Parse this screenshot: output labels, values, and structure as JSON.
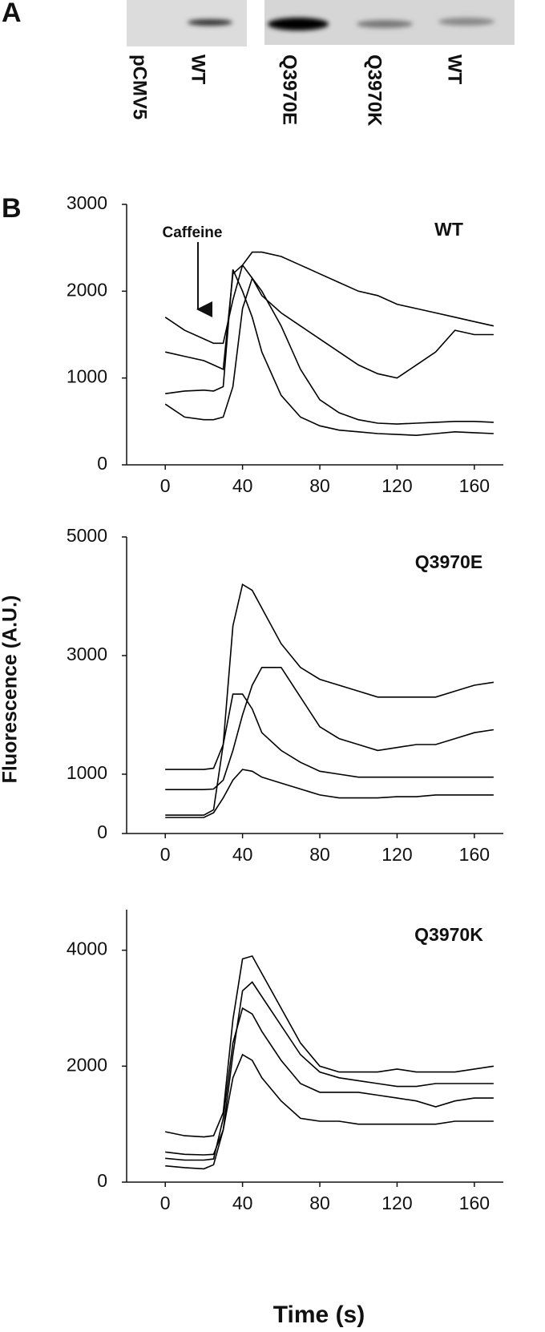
{
  "panel_labels": [
    "A",
    "B"
  ],
  "blot": {
    "lanes": [
      "pCMV5",
      "WT",
      "Q3970E",
      "Q3970K",
      "WT"
    ]
  },
  "chart_data": [
    {
      "type": "line",
      "label": "WT",
      "annotation": "Caffeine",
      "x": [
        0,
        10,
        20,
        25,
        30,
        35,
        40,
        45,
        50,
        60,
        70,
        80,
        90,
        100,
        110,
        120,
        130,
        140,
        150,
        160,
        170
      ],
      "xlim": [
        -20,
        175
      ],
      "xticks": [
        0,
        40,
        80,
        120,
        160
      ],
      "ylim": [
        0,
        3000
      ],
      "yticks": [
        0,
        1000,
        2000,
        3000
      ],
      "series": [
        {
          "color": "#000000",
          "values": [
            1700,
            1550,
            1450,
            1400,
            1400,
            1900,
            2300,
            2450,
            2450,
            2400,
            2300,
            2200,
            2100,
            2000,
            1950,
            1850,
            1800,
            1750,
            1700,
            1650,
            1600
          ]
        },
        {
          "color": "#000000",
          "values": [
            1300,
            1250,
            1200,
            1150,
            1100,
            2200,
            2300,
            2150,
            1950,
            1750,
            1600,
            1450,
            1300,
            1150,
            1050,
            1000,
            1150,
            1300,
            1550,
            1500,
            1500
          ]
        },
        {
          "color": "#000000",
          "values": [
            820,
            850,
            860,
            850,
            900,
            2250,
            2000,
            1700,
            1300,
            800,
            550,
            450,
            400,
            380,
            360,
            350,
            340,
            360,
            380,
            370,
            360
          ]
        },
        {
          "color": "#000000",
          "values": [
            700,
            550,
            520,
            520,
            550,
            900,
            1800,
            2150,
            2000,
            1600,
            1100,
            750,
            600,
            520,
            480,
            470,
            480,
            490,
            500,
            500,
            490
          ]
        }
      ]
    },
    {
      "type": "line",
      "label": "Q3970E",
      "y_label": "Fluorescence (A.U.)",
      "x": [
        0,
        10,
        20,
        25,
        30,
        35,
        40,
        45,
        50,
        60,
        70,
        80,
        90,
        100,
        110,
        120,
        130,
        140,
        150,
        160,
        170
      ],
      "xlim": [
        -20,
        175
      ],
      "xticks": [
        0,
        40,
        80,
        120,
        160
      ],
      "ylim": [
        0,
        5000
      ],
      "yticks": [
        0,
        1000,
        3000,
        5000
      ],
      "series": [
        {
          "color": "#000000",
          "values": [
            1080,
            1080,
            1080,
            1100,
            1500,
            3500,
            4200,
            4100,
            3800,
            3200,
            2800,
            2600,
            2500,
            2400,
            2300,
            2300,
            2300,
            2300,
            2400,
            2500,
            2550
          ]
        },
        {
          "color": "#000000",
          "values": [
            740,
            740,
            740,
            750,
            900,
            1400,
            2000,
            2500,
            2800,
            2800,
            2300,
            1800,
            1600,
            1500,
            1400,
            1450,
            1500,
            1500,
            1600,
            1700,
            1750
          ]
        },
        {
          "color": "#000000",
          "values": [
            310,
            310,
            310,
            400,
            1500,
            2350,
            2350,
            2100,
            1700,
            1400,
            1200,
            1050,
            1000,
            950,
            950,
            950,
            950,
            950,
            950,
            950,
            950
          ]
        },
        {
          "color": "#000000",
          "values": [
            270,
            270,
            270,
            350,
            600,
            900,
            1080,
            1050,
            950,
            850,
            750,
            650,
            600,
            600,
            600,
            620,
            620,
            650,
            650,
            650,
            650
          ]
        }
      ]
    },
    {
      "type": "line",
      "label": "Q3970K",
      "x_label": "Time (s)",
      "x": [
        0,
        10,
        20,
        25,
        30,
        35,
        40,
        45,
        50,
        60,
        70,
        80,
        90,
        100,
        110,
        120,
        130,
        140,
        150,
        160,
        170
      ],
      "xlim": [
        -20,
        175
      ],
      "xticks": [
        0,
        40,
        80,
        120,
        160
      ],
      "ylim": [
        0,
        4700
      ],
      "yticks": [
        0,
        2000,
        4000
      ],
      "series": [
        {
          "color": "#000000",
          "values": [
            870,
            800,
            780,
            800,
            1200,
            2800,
            3850,
            3900,
            3600,
            3000,
            2400,
            2000,
            1900,
            1900,
            1900,
            1950,
            1900,
            1900,
            1900,
            1950,
            2000
          ]
        },
        {
          "color": "#000000",
          "values": [
            520,
            480,
            470,
            480,
            900,
            2200,
            3300,
            3450,
            3200,
            2700,
            2200,
            1900,
            1800,
            1750,
            1700,
            1650,
            1650,
            1700,
            1700,
            1700,
            1700
          ]
        },
        {
          "color": "#000000",
          "values": [
            410,
            380,
            380,
            400,
            1100,
            2400,
            3000,
            2900,
            2600,
            2100,
            1700,
            1550,
            1550,
            1550,
            1500,
            1450,
            1400,
            1300,
            1400,
            1450,
            1450
          ]
        },
        {
          "color": "#000000",
          "values": [
            280,
            250,
            230,
            300,
            900,
            1800,
            2200,
            2100,
            1800,
            1400,
            1100,
            1050,
            1050,
            1000,
            1000,
            1000,
            1000,
            1000,
            1050,
            1050,
            1050
          ]
        }
      ]
    }
  ]
}
